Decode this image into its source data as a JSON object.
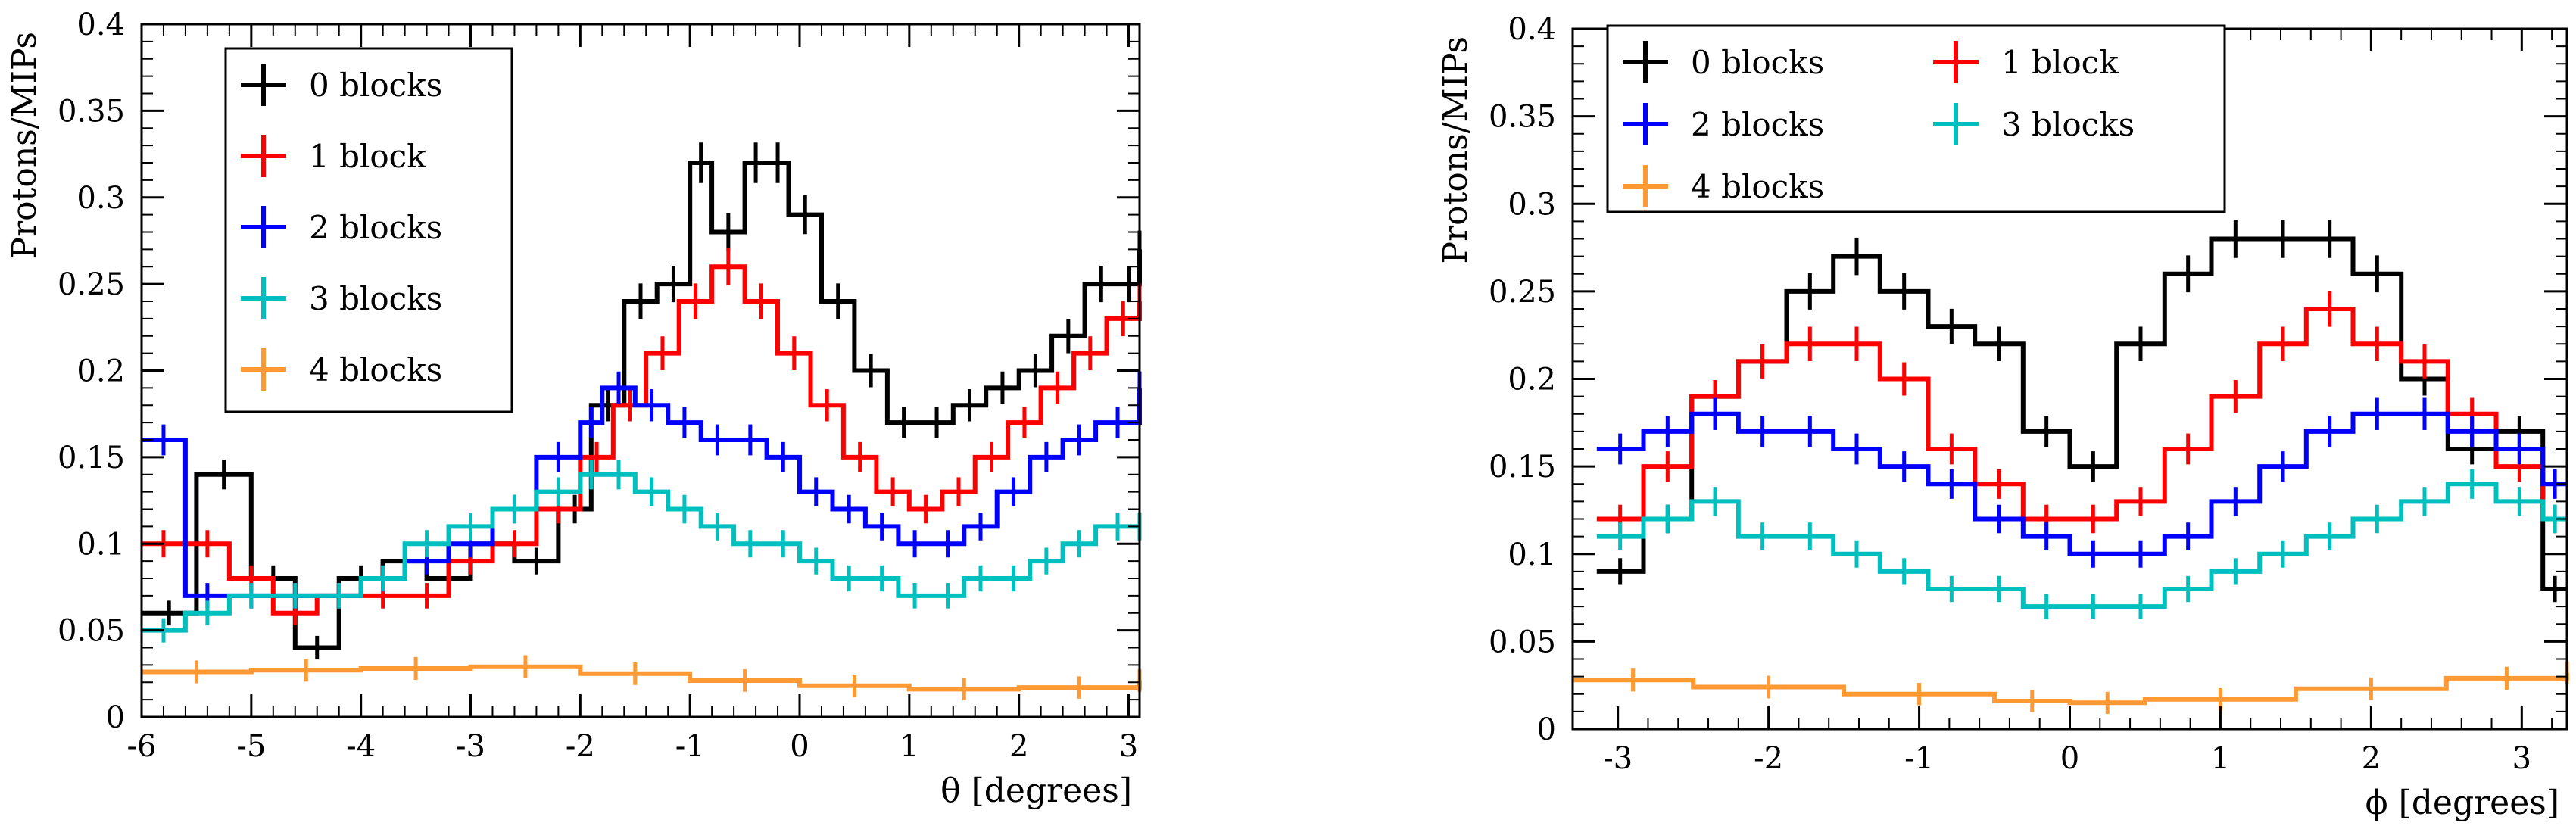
{
  "chart_data": [
    {
      "type": "step",
      "xlabel": "θ [degrees]",
      "ylabel": "Protons/MIPs",
      "xlim": [
        -6,
        3.1
      ],
      "ylim": [
        0,
        0.4
      ],
      "xticks": [
        "-6",
        "-5",
        "-4",
        "-3",
        "-2",
        "-1",
        "0",
        "1",
        "2",
        "3"
      ],
      "yticks": [
        "0",
        "0.05",
        "0.1",
        "0.15",
        "0.2",
        "0.25",
        "0.3",
        "0.35",
        "0.4"
      ],
      "legend_position": "top-left",
      "series": [
        {
          "name": "0 blocks",
          "color": "#000000",
          "x": [
            -6,
            -5.5,
            -5,
            -4.6,
            -4.2,
            -3.8,
            -3.4,
            -3.0,
            -2.6,
            -2.2,
            -1.9,
            -1.6,
            -1.3,
            -1.0,
            -0.8,
            -0.5,
            -0.3,
            -0.1,
            0.2,
            0.5,
            0.8,
            1.1,
            1.4,
            1.7,
            2.0,
            2.3,
            2.6,
            2.9,
            3.1
          ],
          "y": [
            0.06,
            0.14,
            0.08,
            0.04,
            0.08,
            0.09,
            0.08,
            0.1,
            0.09,
            0.12,
            0.18,
            0.24,
            0.25,
            0.32,
            0.28,
            0.32,
            0.32,
            0.29,
            0.24,
            0.2,
            0.17,
            0.17,
            0.18,
            0.19,
            0.2,
            0.22,
            0.25,
            0.25,
            0.27
          ]
        },
        {
          "name": "1 block",
          "color": "#ff0000",
          "x": [
            -6,
            -5.6,
            -5.2,
            -4.8,
            -4.4,
            -4.0,
            -3.6,
            -3.2,
            -2.8,
            -2.4,
            -2.0,
            -1.7,
            -1.4,
            -1.1,
            -0.8,
            -0.5,
            -0.2,
            0.1,
            0.4,
            0.7,
            1.0,
            1.3,
            1.6,
            1.9,
            2.2,
            2.5,
            2.8,
            3.1
          ],
          "y": [
            0.1,
            0.1,
            0.08,
            0.06,
            0.07,
            0.07,
            0.07,
            0.09,
            0.1,
            0.12,
            0.15,
            0.18,
            0.21,
            0.24,
            0.26,
            0.24,
            0.21,
            0.18,
            0.15,
            0.13,
            0.12,
            0.13,
            0.15,
            0.17,
            0.19,
            0.21,
            0.23,
            0.24
          ]
        },
        {
          "name": "2 blocks",
          "color": "#0000ff",
          "x": [
            -6,
            -5.6,
            -5.2,
            -4.8,
            -4.4,
            -4.0,
            -3.6,
            -3.2,
            -2.8,
            -2.4,
            -2.0,
            -1.8,
            -1.5,
            -1.2,
            -0.9,
            -0.6,
            -0.3,
            0.0,
            0.3,
            0.6,
            0.9,
            1.2,
            1.5,
            1.8,
            2.1,
            2.4,
            2.7,
            3.1
          ],
          "y": [
            0.16,
            0.07,
            0.07,
            0.07,
            0.07,
            0.08,
            0.09,
            0.1,
            0.12,
            0.15,
            0.17,
            0.19,
            0.18,
            0.17,
            0.16,
            0.16,
            0.15,
            0.13,
            0.12,
            0.11,
            0.1,
            0.1,
            0.11,
            0.13,
            0.15,
            0.16,
            0.17,
            0.19
          ]
        },
        {
          "name": "3 blocks",
          "color": "#00bfbf",
          "x": [
            -6,
            -5.6,
            -5.2,
            -4.8,
            -4.4,
            -4.0,
            -3.6,
            -3.2,
            -2.8,
            -2.4,
            -2.0,
            -1.8,
            -1.5,
            -1.2,
            -0.9,
            -0.6,
            -0.3,
            0.0,
            0.3,
            0.6,
            0.9,
            1.2,
            1.5,
            1.8,
            2.1,
            2.4,
            2.7,
            3.1
          ],
          "y": [
            0.05,
            0.06,
            0.07,
            0.07,
            0.07,
            0.08,
            0.1,
            0.11,
            0.12,
            0.13,
            0.14,
            0.14,
            0.13,
            0.12,
            0.11,
            0.1,
            0.1,
            0.09,
            0.08,
            0.08,
            0.07,
            0.07,
            0.08,
            0.08,
            0.09,
            0.1,
            0.11,
            0.11
          ]
        },
        {
          "name": "4 blocks",
          "color": "#ff9933",
          "x": [
            -6,
            -5,
            -4,
            -3,
            -2,
            -1,
            0,
            1,
            2,
            3.1
          ],
          "y": [
            0.026,
            0.027,
            0.028,
            0.029,
            0.025,
            0.021,
            0.018,
            0.016,
            0.017,
            0.021
          ]
        }
      ]
    },
    {
      "type": "step",
      "xlabel": "ϕ [degrees]",
      "ylabel": "Protons/MIPs",
      "xlim": [
        -3.3,
        3.3
      ],
      "ylim": [
        0,
        0.4
      ],
      "xticks": [
        "-3",
        "-2",
        "-1",
        "0",
        "1",
        "2",
        "3"
      ],
      "yticks": [
        "0",
        "0.05",
        "0.1",
        "0.15",
        "0.2",
        "0.25",
        "0.3",
        "0.35",
        "0.4"
      ],
      "legend_position": "top",
      "series": [
        {
          "name": "0 blocks",
          "color": "#000000",
          "x": [
            -3.14,
            -2.83,
            -2.51,
            -2.2,
            -1.88,
            -1.57,
            -1.26,
            -0.94,
            -0.63,
            -0.31,
            0.0,
            0.31,
            0.63,
            0.94,
            1.26,
            1.57,
            1.88,
            2.2,
            2.51,
            2.83,
            3.14
          ],
          "y": [
            0.09,
            0.12,
            0.19,
            0.21,
            0.25,
            0.27,
            0.25,
            0.23,
            0.22,
            0.17,
            0.15,
            0.22,
            0.26,
            0.28,
            0.28,
            0.28,
            0.26,
            0.2,
            0.16,
            0.17,
            0.08
          ]
        },
        {
          "name": "1 block",
          "color": "#ff0000",
          "x": [
            -3.14,
            -2.83,
            -2.51,
            -2.2,
            -1.88,
            -1.57,
            -1.26,
            -0.94,
            -0.63,
            -0.31,
            0.0,
            0.31,
            0.63,
            0.94,
            1.26,
            1.57,
            1.88,
            2.2,
            2.51,
            2.83,
            3.14
          ],
          "y": [
            0.12,
            0.15,
            0.19,
            0.21,
            0.22,
            0.22,
            0.2,
            0.16,
            0.14,
            0.12,
            0.12,
            0.13,
            0.16,
            0.19,
            0.22,
            0.24,
            0.22,
            0.21,
            0.18,
            0.15,
            0.12
          ]
        },
        {
          "name": "2 blocks",
          "color": "#0000ff",
          "x": [
            -3.14,
            -2.83,
            -2.51,
            -2.2,
            -1.88,
            -1.57,
            -1.26,
            -0.94,
            -0.63,
            -0.31,
            0.0,
            0.31,
            0.63,
            0.94,
            1.26,
            1.57,
            1.88,
            2.2,
            2.51,
            2.83,
            3.14
          ],
          "y": [
            0.16,
            0.17,
            0.18,
            0.17,
            0.17,
            0.16,
            0.15,
            0.14,
            0.12,
            0.11,
            0.1,
            0.1,
            0.11,
            0.13,
            0.15,
            0.17,
            0.18,
            0.18,
            0.17,
            0.16,
            0.14
          ]
        },
        {
          "name": "3 blocks",
          "color": "#00bfbf",
          "x": [
            -3.14,
            -2.83,
            -2.51,
            -2.2,
            -1.88,
            -1.57,
            -1.26,
            -0.94,
            -0.63,
            -0.31,
            0.0,
            0.31,
            0.63,
            0.94,
            1.26,
            1.57,
            1.88,
            2.2,
            2.51,
            2.83,
            3.14
          ],
          "y": [
            0.11,
            0.12,
            0.13,
            0.11,
            0.11,
            0.1,
            0.09,
            0.08,
            0.08,
            0.07,
            0.07,
            0.07,
            0.08,
            0.09,
            0.1,
            0.11,
            0.12,
            0.13,
            0.14,
            0.13,
            0.12
          ]
        },
        {
          "name": "4 blocks",
          "color": "#ff9933",
          "x": [
            -3.3,
            -2.5,
            -1.5,
            -0.5,
            0.0,
            0.5,
            1.5,
            2.5,
            3.3
          ],
          "y": [
            0.028,
            0.024,
            0.02,
            0.016,
            0.015,
            0.017,
            0.023,
            0.029,
            0.032
          ]
        }
      ]
    }
  ]
}
